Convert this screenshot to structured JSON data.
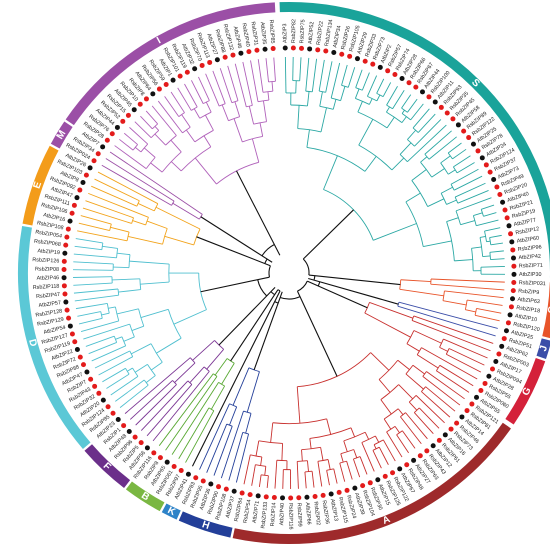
{
  "groups": [
    {
      "label": "S",
      "color": "#1aa39a",
      "start": -2,
      "end": 91,
      "branch": "#2ba8a4"
    },
    {
      "label": "C",
      "color": "#e8542a",
      "start": 92,
      "end": 104,
      "branch": "#e8542a"
    },
    {
      "label": "J",
      "color": "#3b4ea8",
      "start": 104.5,
      "end": 108.5,
      "branch": "#3b4ea8"
    },
    {
      "label": "G",
      "color": "#d4213a",
      "start": 109,
      "end": 124,
      "branch": "#c8302e"
    },
    {
      "label": "A",
      "color": "#9e2a2b",
      "start": 125,
      "end": 192,
      "branch": "#c8302e"
    },
    {
      "label": "H",
      "color": "#233f99",
      "start": 192.5,
      "end": 204,
      "branch": "#233f99"
    },
    {
      "label": "K",
      "color": "#2e83c8",
      "start": 204.5,
      "end": 208,
      "branch": "#2e83c8"
    },
    {
      "label": "B",
      "color": "#7ab742",
      "start": 208.5,
      "end": 217,
      "branch": "#58a832"
    },
    {
      "label": "F",
      "color": "#6b2f8a",
      "start": 217.5,
      "end": 229,
      "branch": "#7b3694"
    },
    {
      "label": "D",
      "color": "#5bc8d6",
      "start": 229.5,
      "end": 280,
      "branch": "#4fbfcf"
    },
    {
      "label": "E",
      "color": "#f39c1a",
      "start": 280.5,
      "end": 298,
      "branch": "#f2a31b"
    },
    {
      "label": "M",
      "color": "#9b4fa6",
      "start": 298.5,
      "end": 304,
      "branch": "#9b4fa6"
    },
    {
      "label": "I",
      "color": "#9b4fa6",
      "start": 304.5,
      "end": 357,
      "branch": "#b061ba"
    }
  ],
  "leaves": [
    "AtbZIP3",
    "RsbZIP82",
    "RsbZIP75",
    "AtbZIP52",
    "RsbZIP22",
    "RsbZIP134",
    "AtbZIP34",
    "RsbZIP26",
    "RsbZIP105",
    "AtbZIP29",
    "RsbZIP33",
    "RsbZIP73",
    "AtbZIP2",
    "RsbZIP57",
    "RsbZIP74",
    "AtbZIP28",
    "RsbZIP66",
    "RsbZIP67",
    "AtbZIP44",
    "RsbZIP100",
    "AtbZIP11",
    "RsbZIP93",
    "RsbZIP35",
    "RsbZIP45",
    "AtbZIP58",
    "RsbZIP89",
    "RsbZIP122",
    "AtbZIP25",
    "RsbZIP78",
    "AtbZIP24",
    "RsbZIP124",
    "RsbZIP37",
    "AtbZIP73",
    "RsbZIP49",
    "RsbZIP20",
    "AtbZIP40",
    "RsbZIP21",
    "RsbZIP19",
    "AtbZIP77",
    "RsbZIP12",
    "AtbZIP60",
    "RsbZIP96",
    "AtbZIP42",
    "RsbZIP71",
    "AtbZIP30",
    "RsbZIP031",
    "RsbZIP9",
    "AtbZIP63",
    "RsbZIP18",
    "AtbZIP10",
    "RsbZIP120",
    "AtbZIP25",
    "RsbZIP51",
    "AtbZIP62",
    "RsbZIP003",
    "AtbZIP17",
    "RsbZIP094",
    "AtbZIP28",
    "RsbZIP55",
    "RsbZIP060",
    "AtbZIP55",
    "RsbZIP121",
    "RsbZIP81",
    "AtbZIP14",
    "RsbZIP46",
    "RsbZIP73",
    "AtbZIP16",
    "RsbZIP61",
    "AtbZIP12",
    "RsbZIP43",
    "RsbZIP63",
    "AtbZIP27",
    "RsbZIP48",
    "AtbZIP67",
    "RsbZIP122",
    "RsbZIP125",
    "AtbZIP15",
    "RsbZIP30",
    "RsbZIP104",
    "AtbZIP39",
    "RsbZIP24",
    "RsbZIP115",
    "AtbZIP13",
    "RsbZIP36",
    "RsbZIP02",
    "AtbZIP66",
    "RsbZIP99",
    "RsbZIP116",
    "AtbZIP40",
    "RsbZIP14",
    "RsbZIP133",
    "AtbZIP71",
    "RsbZIP54",
    "RsbZIP84",
    "AtbZIP37",
    "RsbZIP108",
    "RsbZIP90",
    "AtbZIP36",
    "RsbZIP95",
    "RsbZIP83",
    "AtbZIP41",
    "RsbZIP97",
    "RsbZIP061",
    "AtbZIP65",
    "RsbZIP8",
    "RsbZIP116",
    "AtbZIP56",
    "RsbZIP5",
    "RsbZIP96",
    "AtbZIP48",
    "RsbZIP1",
    "AtbZIP23",
    "RsbZIP85",
    "RsbZIP124",
    "AtbZIP20",
    "RsbZIP32",
    "RsbZIP43",
    "RsbZIP7",
    "AtbZIP47",
    "RsbZIP88",
    "RsbZIP72",
    "AtbZIP22",
    "RsbZIP119",
    "RsbZIP127",
    "AtbZIP54",
    "RsbZIP129",
    "RsbZIP128",
    "AtbZIP57",
    "RsbZIP47",
    "RsbZIP118",
    "AtbZIP46",
    "RsbZIP08",
    "RsbZIP126",
    "AtbZIP19",
    "RsbZIP068",
    "RsbZIP054",
    "RsbZIP108",
    "AtbZIP16",
    "RsbZIP106",
    "RsbZIP111",
    "AtbZIP47",
    "RsbZIP092",
    "AtbZIP8",
    "RsbZIP103",
    "AtbZIP26",
    "RsbZIP024",
    "RsbZIP34",
    "AtbZIP7",
    "RsbZIP28",
    "RsbZIP76",
    "AtbZIP44",
    "RsbZIP52",
    "RsbZIP15",
    "AtbZIP45",
    "RsbZIP10",
    "RsbZIP8",
    "AtbZIP64",
    "RsbZIP56",
    "RsbZIP59",
    "AtbZIP1",
    "RsbZIP101",
    "RsbZIP119",
    "AtbZIP32",
    "RsbZIP70",
    "RsbZIP113",
    "AtbZIP27",
    "RsbZIP88",
    "RsbZIP132",
    "AtbZIP46",
    "RsbZIP40",
    "RsbZIP31",
    "AtbZIP35",
    "RsbZIP85"
  ]
}
